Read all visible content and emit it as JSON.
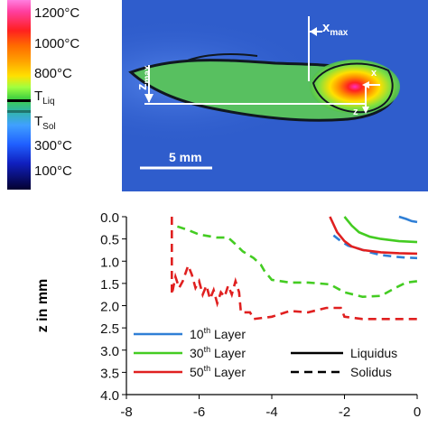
{
  "colorbar": {
    "labels": [
      "1200°C",
      "1000°C",
      "800°C",
      "T",
      "Liq",
      "T",
      "Sol",
      "300°C",
      "100°C"
    ]
  },
  "thermal": {
    "x_max_label": "x",
    "x_max_sub": "max",
    "z_max_label": "z",
    "z_max_sub": "max",
    "axis_x": "x",
    "axis_z": "z",
    "scale_bar": "5 mm",
    "background_color": "#2f5dcc"
  },
  "chart_data": {
    "type": "line",
    "xlabel": "",
    "ylabel": "z in mm",
    "xlim": [
      -8,
      0
    ],
    "ylim": [
      0.0,
      4.0
    ],
    "y_inverted": true,
    "x_ticks": [
      "-8",
      "-6",
      "-4",
      "-2",
      "0"
    ],
    "y_ticks": [
      "0.0",
      "0.5",
      "1.0",
      "1.5",
      "2.0",
      "2.5",
      "3.0",
      "3.5",
      "4.0"
    ],
    "grid": false,
    "legend": {
      "layers": [
        {
          "prefix": "10",
          "sup": "th",
          "suffix": " Layer",
          "color": "#2f7fd6"
        },
        {
          "prefix": "30",
          "sup": "th",
          "suffix": " Layer",
          "color": "#44cc22"
        },
        {
          "prefix": "50",
          "sup": "th",
          "suffix": " Layer",
          "color": "#e02020"
        }
      ],
      "styles": [
        {
          "label": "Liquidus",
          "dash": "solid"
        },
        {
          "label": "Solidus",
          "dash": "dashed"
        }
      ]
    },
    "series": [
      {
        "layer": 0,
        "kind": "liquidus",
        "color": "#2f7fd6",
        "points": [
          [
            -0.5,
            0.0
          ],
          [
            -0.3,
            0.05
          ],
          [
            -0.15,
            0.1
          ],
          [
            0.0,
            0.12
          ]
        ]
      },
      {
        "layer": 0,
        "kind": "solidus",
        "color": "#2f7fd6",
        "points": [
          [
            -2.3,
            0.42
          ],
          [
            -2.1,
            0.55
          ],
          [
            -1.9,
            0.65
          ],
          [
            -1.6,
            0.72
          ],
          [
            -1.3,
            0.8
          ],
          [
            -1.0,
            0.86
          ],
          [
            -0.6,
            0.9
          ],
          [
            -0.3,
            0.92
          ],
          [
            0.0,
            0.93
          ]
        ]
      },
      {
        "layer": 1,
        "kind": "liquidus",
        "color": "#44cc22",
        "points": [
          [
            -2.0,
            0.0
          ],
          [
            -1.8,
            0.2
          ],
          [
            -1.6,
            0.35
          ],
          [
            -1.3,
            0.45
          ],
          [
            -1.0,
            0.5
          ],
          [
            -0.5,
            0.55
          ],
          [
            0.0,
            0.57
          ]
        ]
      },
      {
        "layer": 1,
        "kind": "solidus",
        "color": "#44cc22",
        "points": [
          [
            -6.6,
            0.22
          ],
          [
            -6.3,
            0.3
          ],
          [
            -6.0,
            0.4
          ],
          [
            -5.5,
            0.47
          ],
          [
            -5.2,
            0.47
          ],
          [
            -5.0,
            0.62
          ],
          [
            -4.8,
            0.78
          ],
          [
            -4.5,
            0.93
          ],
          [
            -4.3,
            1.08
          ],
          [
            -4.2,
            1.22
          ],
          [
            -4.0,
            1.42
          ],
          [
            -3.5,
            1.48
          ],
          [
            -3.0,
            1.48
          ],
          [
            -2.4,
            1.52
          ],
          [
            -2.0,
            1.7
          ],
          [
            -1.5,
            1.8
          ],
          [
            -1.0,
            1.78
          ],
          [
            -0.6,
            1.6
          ],
          [
            -0.3,
            1.48
          ],
          [
            0.0,
            1.45
          ]
        ]
      },
      {
        "layer": 2,
        "kind": "liquidus",
        "color": "#e02020",
        "points": [
          [
            -2.4,
            0.0
          ],
          [
            -2.2,
            0.35
          ],
          [
            -2.0,
            0.55
          ],
          [
            -1.8,
            0.67
          ],
          [
            -1.5,
            0.75
          ],
          [
            -1.0,
            0.8
          ],
          [
            -0.5,
            0.82
          ],
          [
            0.0,
            0.83
          ]
        ]
      },
      {
        "layer": 2,
        "kind": "solidus",
        "color": "#e02020",
        "points": [
          [
            -6.75,
            0.0
          ],
          [
            -6.75,
            1.75
          ],
          [
            -6.65,
            1.35
          ],
          [
            -6.55,
            1.6
          ],
          [
            -6.45,
            1.45
          ],
          [
            -6.3,
            1.1
          ],
          [
            -6.2,
            1.3
          ],
          [
            -6.1,
            1.6
          ],
          [
            -6.0,
            1.45
          ],
          [
            -5.9,
            1.75
          ],
          [
            -5.8,
            1.55
          ],
          [
            -5.7,
            1.85
          ],
          [
            -5.6,
            1.65
          ],
          [
            -5.5,
            1.95
          ],
          [
            -5.4,
            1.7
          ],
          [
            -5.3,
            1.8
          ],
          [
            -5.2,
            1.55
          ],
          [
            -5.1,
            1.75
          ],
          [
            -5.0,
            1.45
          ],
          [
            -4.9,
            1.7
          ],
          [
            -4.85,
            2.15
          ],
          [
            -4.6,
            2.15
          ],
          [
            -4.5,
            2.3
          ],
          [
            -4.0,
            2.25
          ],
          [
            -3.5,
            2.12
          ],
          [
            -3.0,
            2.15
          ],
          [
            -2.5,
            2.05
          ],
          [
            -2.1,
            2.05
          ],
          [
            -2.0,
            2.25
          ],
          [
            -1.5,
            2.3
          ],
          [
            -1.0,
            2.3
          ],
          [
            -0.5,
            2.3
          ],
          [
            0.0,
            2.3
          ]
        ]
      }
    ]
  }
}
